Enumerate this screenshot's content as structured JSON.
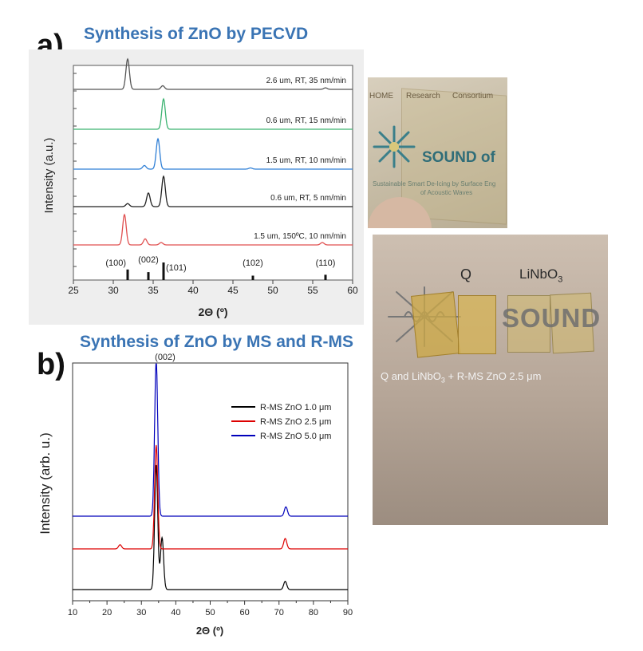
{
  "panel_a": {
    "label": "a)",
    "title": "Synthesis of ZnO by PECVD",
    "photo": {
      "nav_home": "HOME",
      "nav_research": "Research",
      "nav_consortium": "Consortium",
      "brand": "SOUND of",
      "tagline_1": "Sustainable Smart De-Icing by Surface Eng",
      "tagline_2": "of Acoustic Waves",
      "logo_icon": "snowflake-wave-logo"
    }
  },
  "panel_b": {
    "label": "b)",
    "title": "Synthesis of ZnO by MS and R-MS",
    "photo": {
      "label_q": "Q",
      "label_linbo3": "LiNbO",
      "label_linbo3_sub": "3",
      "word_sound": "SOUND",
      "caption_pre": "Q and LiNbO",
      "caption_sub": "3",
      "caption_post": " + R-MS ZnO 2.5 μm"
    }
  },
  "chart_data": [
    {
      "type": "line",
      "title": "Synthesis of ZnO by PECVD",
      "xlabel": "2Θ (º)",
      "ylabel": "Intensity (a.u.)",
      "xlim": [
        25,
        60
      ],
      "xticks": [
        25,
        30,
        35,
        40,
        45,
        50,
        55,
        60
      ],
      "yticks_unlabeled": true,
      "series": [
        {
          "name": "2.6 um, RT, 35 nm/min",
          "color": "#555555",
          "peaks": [
            [
              31.8,
              1.0
            ],
            [
              36.2,
              0.12
            ],
            [
              56.6,
              0.05
            ]
          ]
        },
        {
          "name": "0.6 um, RT, 15 nm/min",
          "color": "#3cb371",
          "peaks": [
            [
              36.3,
              1.0
            ]
          ]
        },
        {
          "name": "1.5 um, RT, 10 nm/min",
          "color": "#2f7fd6",
          "peaks": [
            [
              33.9,
              0.12
            ],
            [
              35.6,
              1.0
            ],
            [
              47.2,
              0.04
            ]
          ]
        },
        {
          "name": "0.6 um, RT, 5 nm/min",
          "color": "#222222",
          "peaks": [
            [
              31.8,
              0.1
            ],
            [
              34.4,
              0.45
            ],
            [
              36.3,
              1.0
            ]
          ]
        },
        {
          "name": "1.5 um, 150ºC, 10 nm/min",
          "color": "#e05050",
          "peaks": [
            [
              31.4,
              1.0
            ],
            [
              34.0,
              0.2
            ],
            [
              36.0,
              0.08
            ],
            [
              56.2,
              0.08
            ]
          ]
        }
      ],
      "reference_lines": [
        {
          "label": "(100)",
          "x": 31.8,
          "height": 0.6
        },
        {
          "label": "(002)",
          "x": 34.4,
          "height": 0.45
        },
        {
          "label": "(101)",
          "x": 36.3,
          "height": 1.0
        },
        {
          "label": "(102)",
          "x": 47.5,
          "height": 0.25
        },
        {
          "label": "(110)",
          "x": 56.6,
          "height": 0.3
        }
      ]
    },
    {
      "type": "line",
      "title": "Synthesis of ZnO by MS and R-MS",
      "xlabel": "2Θ (º)",
      "ylabel": "Intensity (arb. u.)",
      "xlim": [
        10,
        90
      ],
      "xticks": [
        10,
        20,
        30,
        40,
        50,
        60,
        70,
        80,
        90
      ],
      "annotation": "(002)",
      "legend_position": "top-right",
      "series": [
        {
          "name": "R-MS ZnO 1.0 μm",
          "color": "#000000",
          "peaks": [
            [
              34.3,
              1.2
            ],
            [
              36.0,
              0.5
            ],
            [
              71.8,
              0.08
            ]
          ]
        },
        {
          "name": "R-MS ZnO 2.5 μm",
          "color": "#dd0000",
          "peaks": [
            [
              34.3,
              1.0
            ],
            [
              23.8,
              0.04
            ],
            [
              71.8,
              0.1
            ]
          ]
        },
        {
          "name": "R-MS ZnO 5.0 μm",
          "color": "#0000bb",
          "peaks": [
            [
              34.3,
              1.5
            ],
            [
              72.0,
              0.09
            ]
          ]
        }
      ]
    }
  ]
}
